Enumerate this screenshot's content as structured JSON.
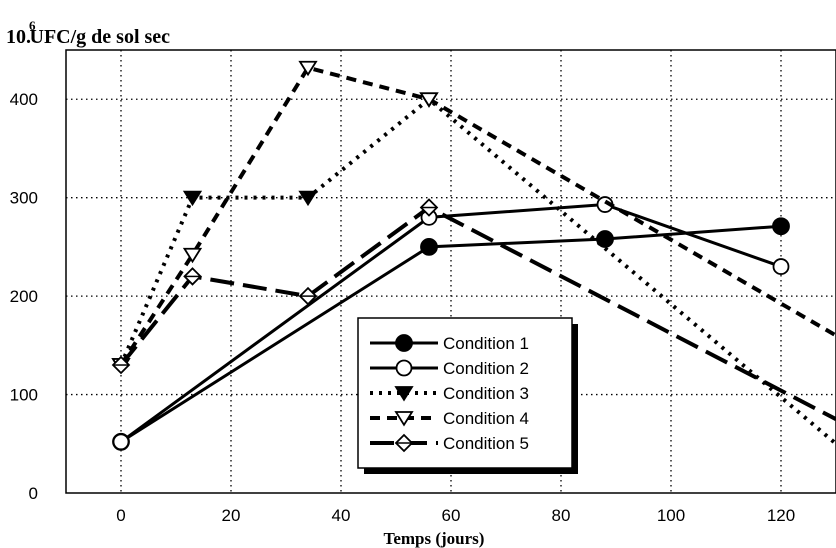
{
  "chart_data": {
    "type": "line",
    "ylabel": "UFC/g de sol sec",
    "ylabel_prefix": "10.",
    "ylabel_exponent": "6",
    "xlabel": "Temps (jours)",
    "xlim": [
      -10,
      130
    ],
    "ylim": [
      0,
      450
    ],
    "xticks": [
      0,
      20,
      40,
      60,
      80,
      100,
      120
    ],
    "yticks": [
      0,
      100,
      200,
      300,
      400
    ],
    "grid": true,
    "legend_position": "center",
    "series": [
      {
        "name": "Condition 1",
        "marker": "filled-circle",
        "dash": "solid",
        "x": [
          0,
          56,
          88,
          120
        ],
        "y": [
          52,
          250,
          258,
          271
        ]
      },
      {
        "name": "Condition 2",
        "marker": "open-circle",
        "dash": "solid",
        "x": [
          0,
          56,
          88,
          120
        ],
        "y": [
          52,
          280,
          293,
          230
        ]
      },
      {
        "name": "Condition 3",
        "marker": "filled-triangle-down",
        "dash": "dotted",
        "x": [
          0,
          13,
          34,
          56,
          130
        ],
        "y": [
          130,
          300,
          300,
          400,
          50
        ]
      },
      {
        "name": "Condition 4",
        "marker": "open-triangle-down",
        "dash": "dashed",
        "x": [
          0,
          13,
          34,
          56,
          130
        ],
        "y": [
          130,
          242,
          432,
          400,
          160
        ]
      },
      {
        "name": "Condition 5",
        "marker": "open-diamond",
        "dash": "longdash",
        "x": [
          0,
          13,
          34,
          56,
          130
        ],
        "y": [
          130,
          220,
          200,
          290,
          75
        ]
      }
    ]
  }
}
